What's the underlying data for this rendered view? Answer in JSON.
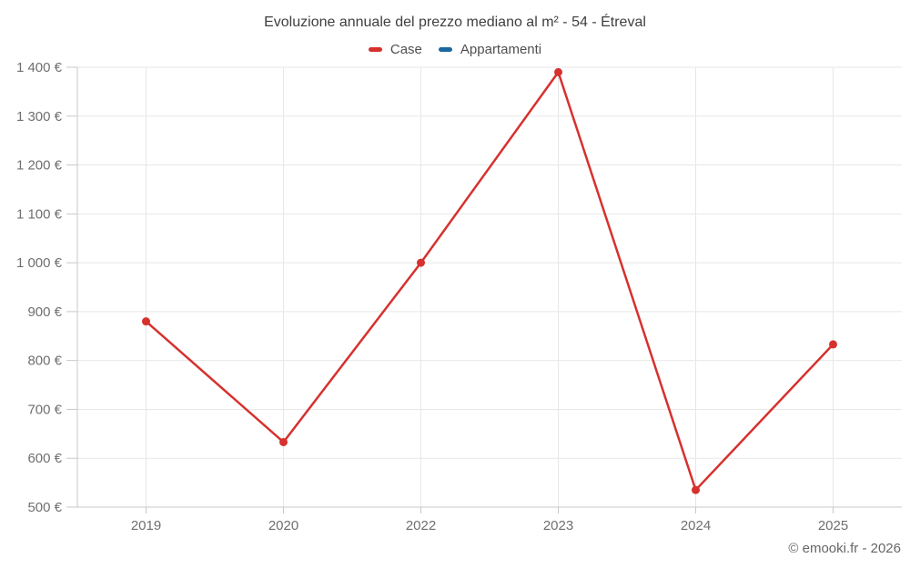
{
  "chart_data": {
    "type": "line",
    "title": "Evoluzione annuale del prezzo mediano al m² - 54 - Étreval",
    "categories": [
      "2019",
      "2020",
      "2022",
      "2023",
      "2024",
      "2025"
    ],
    "series": [
      {
        "name": "Case",
        "color": "#d6312e",
        "values": [
          880,
          633,
          1000,
          1390,
          535,
          833
        ]
      },
      {
        "name": "Appartamenti",
        "color": "#1a699e",
        "values": []
      }
    ],
    "xlabel": "",
    "ylabel": "",
    "ylim": [
      500,
      1400
    ],
    "ytick_step": 100,
    "ytick_suffix": " €",
    "thousands_separator": " ",
    "grid": true,
    "legend_position": "top",
    "legend_entries": [
      {
        "label": "Case",
        "color": "#d6312e"
      },
      {
        "label": "Appartamenti",
        "color": "#1a699e"
      }
    ]
  },
  "footer": {
    "copyright": "© emooki.fr - 2026"
  },
  "colors": {
    "grid_line": "#e7e7e7",
    "axis_line": "#c8c8c8",
    "title_text": "#3f3f3f",
    "axis_text": "#6f6f6f"
  }
}
